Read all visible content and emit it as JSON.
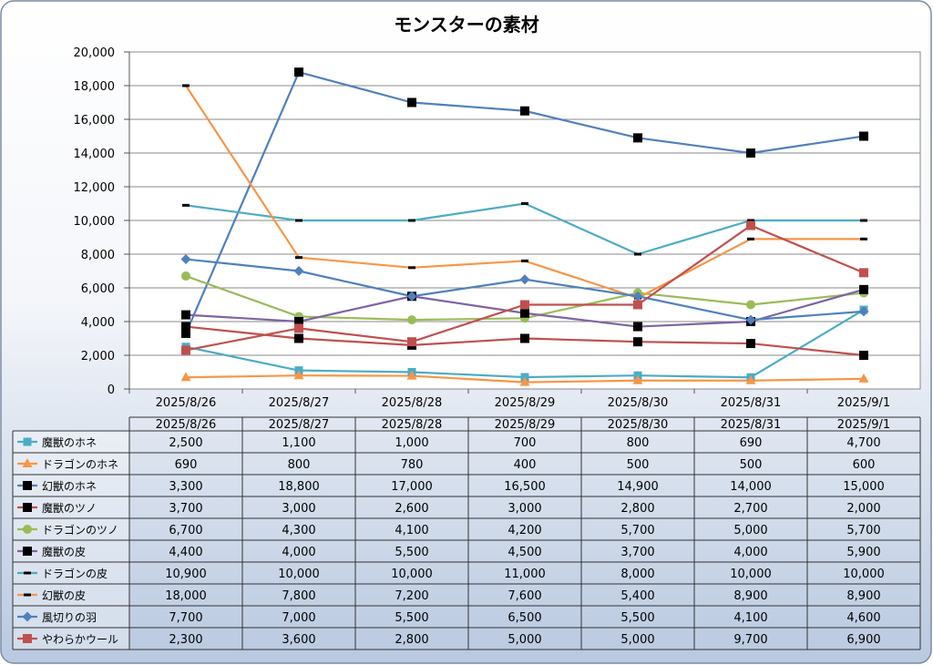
{
  "chart_data": {
    "type": "line",
    "title": "モンスターの素材",
    "xlabel": "",
    "ylabel": "",
    "categories": [
      "2025/8/26",
      "2025/8/27",
      "2025/8/28",
      "2025/8/29",
      "2025/8/30",
      "2025/8/31",
      "2025/9/1"
    ],
    "ylim": [
      0,
      20000
    ],
    "y_ticks": [
      "0",
      "2,000",
      "4,000",
      "6,000",
      "8,000",
      "10,000",
      "12,000",
      "14,000",
      "16,000",
      "18,000",
      "20,000"
    ],
    "grid": "horizontal",
    "legend": "data-table-below",
    "series": [
      {
        "name": "魔獣のホネ",
        "color": "#4bacc6",
        "marker": "square-small",
        "values": [
          2500,
          1100,
          1000,
          700,
          800,
          690,
          4700
        ],
        "labels": [
          "2,500",
          "1,100",
          "1,000",
          "700",
          "800",
          "690",
          "4,700"
        ]
      },
      {
        "name": "ドラゴンのホネ",
        "color": "#f79646",
        "marker": "triangle",
        "values": [
          690,
          800,
          780,
          400,
          500,
          500,
          600
        ],
        "labels": [
          "690",
          "800",
          "780",
          "400",
          "500",
          "500",
          "600"
        ]
      },
      {
        "name": "幻獣のホネ",
        "color": "#4f81bd",
        "marker": "square-black",
        "values": [
          3300,
          18800,
          17000,
          16500,
          14900,
          14000,
          15000
        ],
        "labels": [
          "3,300",
          "18,800",
          "17,000",
          "16,500",
          "14,900",
          "14,000",
          "15,000"
        ]
      },
      {
        "name": "魔獣のツノ",
        "color": "#c0504d",
        "marker": "square-black",
        "values": [
          3700,
          3000,
          2600,
          3000,
          2800,
          2700,
          2000
        ],
        "labels": [
          "3,700",
          "3,000",
          "2,600",
          "3,000",
          "2,800",
          "2,700",
          "2,000"
        ]
      },
      {
        "name": "ドラゴンのツノ",
        "color": "#9bbb59",
        "marker": "circle",
        "values": [
          6700,
          4300,
          4100,
          4200,
          5700,
          5000,
          5700
        ],
        "labels": [
          "6,700",
          "4,300",
          "4,100",
          "4,200",
          "5,700",
          "5,000",
          "5,700"
        ]
      },
      {
        "name": "魔獣の皮",
        "color": "#8064a2",
        "marker": "square-black",
        "values": [
          4400,
          4000,
          5500,
          4500,
          3700,
          4000,
          5900
        ],
        "labels": [
          "4,400",
          "4,000",
          "5,500",
          "4,500",
          "3,700",
          "4,000",
          "5,900"
        ]
      },
      {
        "name": "ドラゴンの皮",
        "color": "#4bacc6",
        "marker": "dash",
        "values": [
          10900,
          10000,
          10000,
          11000,
          8000,
          10000,
          10000
        ],
        "labels": [
          "10,900",
          "10,000",
          "10,000",
          "11,000",
          "8,000",
          "10,000",
          "10,000"
        ]
      },
      {
        "name": "幻獣の皮",
        "color": "#f79646",
        "marker": "dash",
        "values": [
          18000,
          7800,
          7200,
          7600,
          5400,
          8900,
          8900
        ],
        "labels": [
          "18,000",
          "7,800",
          "7,200",
          "7,600",
          "5,400",
          "8,900",
          "8,900"
        ]
      },
      {
        "name": "風切りの羽",
        "color": "#4f81bd",
        "marker": "diamond",
        "values": [
          7700,
          7000,
          5500,
          6500,
          5500,
          4100,
          4600
        ],
        "labels": [
          "7,700",
          "7,000",
          "5,500",
          "6,500",
          "5,500",
          "4,100",
          "4,600"
        ]
      },
      {
        "name": "やわらかウール",
        "color": "#c0504d",
        "marker": "square",
        "values": [
          2300,
          3600,
          2800,
          5000,
          5000,
          9700,
          6900
        ],
        "labels": [
          "2,300",
          "3,600",
          "2,800",
          "5,000",
          "5,000",
          "9,700",
          "6,900"
        ]
      }
    ]
  }
}
